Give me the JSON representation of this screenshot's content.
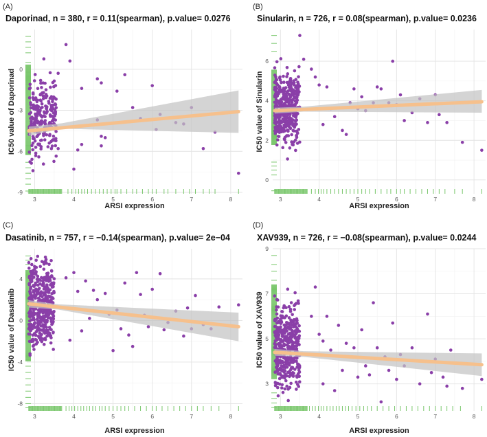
{
  "colors": {
    "point": "#8a3fa8",
    "fit_line": "#f6c08c",
    "ci_band": "#c4c4c4",
    "rug": "#78c66a"
  },
  "chart_data": [
    {
      "type": "scatter",
      "panel": "(A)",
      "title": "Daporinad, n = 380, r = 0.11(spearman), p.value= 0.0276",
      "xlabel": "ARSI expression",
      "ylabel": "IC50 value of Daporinad",
      "xlim": [
        2.8,
        8.3
      ],
      "ylim": [
        -9.1,
        2.9
      ],
      "xticks": [
        3,
        4,
        5,
        6,
        7,
        8
      ],
      "yticks": [
        -9,
        -6,
        -3,
        0
      ],
      "fit": {
        "x0": 2.85,
        "y0": -4.5,
        "x1": 8.2,
        "y1": -3.1
      },
      "ci": {
        "x0": 2.85,
        "lo0": -4.85,
        "hi0": -4.2,
        "xm": 3.7,
        "lom": -4.35,
        "him": -3.95,
        "x1": 8.2,
        "lo1": -4.65,
        "hi1": -1.55
      },
      "points": [
        [
          3.6,
          -0.3
        ],
        [
          3.8,
          1.8
        ],
        [
          3.9,
          0.6
        ],
        [
          4.2,
          -1.4
        ],
        [
          4.6,
          -0.7
        ],
        [
          4.7,
          -1.0
        ],
        [
          5.1,
          -1.6
        ],
        [
          5.3,
          -0.4
        ],
        [
          5.5,
          -2.8
        ],
        [
          5.7,
          -3.6
        ],
        [
          6.0,
          -1.2
        ],
        [
          6.1,
          -4.4
        ],
        [
          6.2,
          -3.3
        ],
        [
          6.6,
          -3.9
        ],
        [
          6.8,
          -4.0
        ],
        [
          7.0,
          -2.8
        ],
        [
          7.3,
          -5.8
        ],
        [
          7.6,
          -4.6
        ],
        [
          8.2,
          -7.6
        ],
        [
          4.6,
          -3.7
        ],
        [
          4.7,
          -4.9
        ],
        [
          4.8,
          -5.0
        ],
        [
          4.7,
          -5.6
        ],
        [
          4.2,
          -5.5
        ],
        [
          4.0,
          -7.3
        ],
        [
          4.1,
          -5.9
        ],
        [
          3.6,
          -5.8
        ]
      ],
      "dense": {
        "count": 250,
        "xmin": 2.85,
        "xmax": 3.55,
        "ymin": -8.4,
        "ymax": 2.0,
        "ycenter": -3.6,
        "seed": 11
      },
      "rug_x": [
        3.85,
        3.95,
        4.05,
        4.12,
        4.2,
        4.28,
        4.35,
        4.45,
        4.55,
        4.65,
        4.75,
        4.85,
        4.95,
        5.05,
        5.1,
        5.2,
        5.35,
        5.5,
        5.6,
        5.75,
        5.9,
        6.0,
        6.1,
        6.3,
        6.4,
        6.6,
        6.8,
        6.95,
        7.1,
        7.3,
        7.45,
        7.6,
        8.2
      ],
      "rug_y": [
        2.4,
        2.0,
        1.6,
        1.2,
        0.5,
        -0.2,
        -0.6,
        -1.1,
        -5.6,
        -6.2,
        -6.8,
        -7.2,
        -7.6,
        -8.0,
        -8.4,
        -8.9
      ]
    },
    {
      "type": "scatter",
      "panel": "(B)",
      "title": "Sinularin, n = 726, r = 0.08(spearman), p.value= 0.0236",
      "xlabel": "ARSI expression",
      "ylabel": "IC50 value of Sinularin",
      "xlim": [
        2.8,
        8.3
      ],
      "ylim": [
        -0.7,
        7.6
      ],
      "xticks": [
        3,
        4,
        5,
        6,
        7,
        8
      ],
      "yticks": [
        0,
        2,
        4,
        6
      ],
      "fit": {
        "x0": 2.85,
        "y0": 3.5,
        "x1": 8.2,
        "y1": 3.95
      },
      "ci": {
        "x0": 2.85,
        "lo0": 3.35,
        "hi0": 3.65,
        "xm": 3.6,
        "lom": 3.45,
        "him": 3.7,
        "x1": 8.2,
        "lo1": 3.4,
        "hi1": 4.55
      },
      "points": [
        [
          3.5,
          7.3
        ],
        [
          3.6,
          6.1
        ],
        [
          4.0,
          4.8
        ],
        [
          4.2,
          4.7
        ],
        [
          4.4,
          3.2
        ],
        [
          4.6,
          2.5
        ],
        [
          4.7,
          2.3
        ],
        [
          4.8,
          3.9
        ],
        [
          4.9,
          4.6
        ],
        [
          5.0,
          3.6
        ],
        [
          5.1,
          4.2
        ],
        [
          5.2,
          3.5
        ],
        [
          5.4,
          3.9
        ],
        [
          5.5,
          4.7
        ],
        [
          5.6,
          4.6
        ],
        [
          5.8,
          3.9
        ],
        [
          5.9,
          6.0
        ],
        [
          6.0,
          3.8
        ],
        [
          6.1,
          4.3
        ],
        [
          6.2,
          3.0
        ],
        [
          6.4,
          3.4
        ],
        [
          6.6,
          4.1
        ],
        [
          6.8,
          2.9
        ],
        [
          7.0,
          4.3
        ],
        [
          7.1,
          3.3
        ],
        [
          7.3,
          2.9
        ],
        [
          7.7,
          1.9
        ],
        [
          8.2,
          1.5
        ],
        [
          4.3,
          3.6
        ],
        [
          3.9,
          5.2
        ],
        [
          3.8,
          5.6
        ],
        [
          4.1,
          2.8
        ]
      ],
      "dense": {
        "count": 440,
        "xmin": 2.85,
        "xmax": 3.5,
        "ymin": 0.3,
        "ymax": 6.4,
        "ycenter": 3.6,
        "seed": 23
      },
      "rug_x": [
        3.8,
        3.9,
        3.98,
        4.05,
        4.12,
        4.2,
        4.3,
        4.4,
        4.5,
        4.6,
        4.7,
        4.8,
        4.9,
        5.0,
        5.1,
        5.2,
        5.3,
        5.45,
        5.6,
        5.75,
        5.85,
        6.0,
        6.1,
        6.2,
        6.35,
        6.5,
        6.65,
        6.8,
        6.95,
        7.1,
        7.25,
        7.5,
        7.7,
        8.2
      ],
      "rug_y": [
        7.3,
        6.9,
        6.5,
        0.9,
        0.7,
        0.5,
        0.25,
        -0.55
      ]
    },
    {
      "type": "scatter",
      "panel": "(C)",
      "title": "Dasatinib, n = 757, r = −0.14(spearman), p.value= 2e−04",
      "xlabel": "ARSI expression",
      "ylabel": "IC50 value of Dasatinib",
      "xlim": [
        2.8,
        8.3
      ],
      "ylim": [
        -8.7,
        6.9
      ],
      "xticks": [
        3,
        4,
        5,
        6,
        7,
        8
      ],
      "yticks": [
        -8,
        -4,
        0,
        4
      ],
      "fit": {
        "x0": 2.85,
        "y0": 1.6,
        "x1": 8.2,
        "y1": -0.6
      },
      "ci": {
        "x0": 2.85,
        "lo0": 1.25,
        "hi0": 1.95,
        "xm": 3.6,
        "lom": 1.05,
        "him": 1.55,
        "x1": 8.2,
        "lo1": -2.0,
        "hi1": 0.75
      },
      "points": [
        [
          3.8,
          4.1
        ],
        [
          4.0,
          4.6
        ],
        [
          4.1,
          2.8
        ],
        [
          4.3,
          3.8
        ],
        [
          4.5,
          2.9
        ],
        [
          4.6,
          2.0
        ],
        [
          4.8,
          2.6
        ],
        [
          4.9,
          0.6
        ],
        [
          5.0,
          -2.9
        ],
        [
          5.1,
          1.0
        ],
        [
          5.2,
          -0.8
        ],
        [
          5.3,
          3.6
        ],
        [
          5.4,
          -1.4
        ],
        [
          5.6,
          4.6
        ],
        [
          5.7,
          2.5
        ],
        [
          5.8,
          0.5
        ],
        [
          5.9,
          -0.6
        ],
        [
          6.0,
          3.0
        ],
        [
          6.2,
          4.5
        ],
        [
          6.3,
          -0.9
        ],
        [
          6.4,
          -0.2
        ],
        [
          6.6,
          0.9
        ],
        [
          6.8,
          -1.5
        ],
        [
          6.9,
          1.2
        ],
        [
          7.0,
          -0.8
        ],
        [
          7.1,
          2.4
        ],
        [
          7.3,
          -0.4
        ],
        [
          7.5,
          -0.8
        ],
        [
          7.7,
          1.3
        ],
        [
          8.2,
          1.5
        ],
        [
          4.2,
          -1.0
        ],
        [
          4.4,
          0.2
        ],
        [
          5.5,
          -2.5
        ],
        [
          3.9,
          -1.9
        ]
      ],
      "dense": {
        "count": 450,
        "xmin": 2.85,
        "xmax": 3.5,
        "ymin": -8.4,
        "ymax": 6.2,
        "ycenter": 1.6,
        "seed": 37
      },
      "rug_x": [
        3.8,
        3.88,
        3.95,
        4.02,
        4.1,
        4.18,
        4.25,
        4.33,
        4.4,
        4.48,
        4.56,
        4.65,
        4.72,
        4.8,
        4.9,
        5.0,
        5.1,
        5.2,
        5.3,
        5.4,
        5.55,
        5.7,
        5.85,
        6.0,
        6.1,
        6.25,
        6.4,
        6.55,
        6.7,
        6.85,
        7.0,
        7.15,
        7.3,
        7.5,
        7.7,
        8.2
      ],
      "rug_y": [
        6.2,
        5.8,
        5.4,
        -3.8,
        -4.4,
        -5.0,
        -5.6,
        -6.2,
        -6.8,
        -7.4,
        -8.0,
        -8.4
      ]
    },
    {
      "type": "scatter",
      "panel": "(D)",
      "title": "XAV939, n = 726, r = −0.08(spearman), p.value= 0.0244",
      "xlabel": "ARSI expression",
      "ylabel": "IC50 value of XAV939",
      "xlim": [
        2.8,
        8.3
      ],
      "ylim": [
        1.8,
        9.0
      ],
      "xticks": [
        3,
        4,
        5,
        6,
        7,
        8
      ],
      "yticks": [
        3,
        5,
        7,
        9
      ],
      "fit": {
        "x0": 2.85,
        "y0": 4.4,
        "x1": 8.2,
        "y1": 3.85
      },
      "ci": {
        "x0": 2.85,
        "lo0": 4.25,
        "hi0": 4.55,
        "xm": 3.6,
        "lom": 4.2,
        "him": 4.45,
        "x1": 8.2,
        "lo1": 3.35,
        "hi1": 4.35
      },
      "points": [
        [
          3.8,
          6.0
        ],
        [
          3.9,
          7.3
        ],
        [
          4.0,
          5.2
        ],
        [
          4.1,
          4.9
        ],
        [
          4.2,
          6.0
        ],
        [
          4.3,
          4.5
        ],
        [
          4.5,
          5.6
        ],
        [
          4.6,
          3.6
        ],
        [
          4.7,
          4.8
        ],
        [
          4.8,
          4.2
        ],
        [
          4.9,
          4.6
        ],
        [
          5.0,
          3.3
        ],
        [
          5.1,
          5.4
        ],
        [
          5.2,
          3.8
        ],
        [
          5.3,
          3.4
        ],
        [
          5.4,
          6.6
        ],
        [
          5.5,
          4.6
        ],
        [
          5.6,
          2.2
        ],
        [
          5.7,
          4.2
        ],
        [
          5.8,
          3.6
        ],
        [
          5.9,
          5.7
        ],
        [
          6.0,
          3.2
        ],
        [
          6.1,
          4.3
        ],
        [
          6.2,
          3.8
        ],
        [
          6.4,
          4.6
        ],
        [
          6.6,
          3.0
        ],
        [
          6.8,
          6.1
        ],
        [
          6.9,
          3.5
        ],
        [
          7.0,
          4.1
        ],
        [
          7.2,
          3.3
        ],
        [
          7.3,
          2.9
        ],
        [
          7.4,
          4.5
        ],
        [
          7.7,
          2.8
        ],
        [
          8.2,
          3.2
        ],
        [
          4.4,
          2.7
        ],
        [
          4.1,
          3.0
        ]
      ],
      "dense": {
        "count": 430,
        "xmin": 2.85,
        "xmax": 3.5,
        "ymin": 2.1,
        "ymax": 8.6,
        "ycenter": 4.6,
        "seed": 51
      },
      "rug_x": [
        3.75,
        3.82,
        3.9,
        3.98,
        4.05,
        4.12,
        4.2,
        4.28,
        4.36,
        4.44,
        4.52,
        4.6,
        4.68,
        4.76,
        4.85,
        4.95,
        5.05,
        5.15,
        5.25,
        5.35,
        5.5,
        5.65,
        5.8,
        5.95,
        6.1,
        6.25,
        6.4,
        6.55,
        6.7,
        6.85,
        7.0,
        7.15,
        7.3,
        7.45,
        7.65,
        8.2
      ],
      "rug_y": [
        8.7,
        8.3,
        8.0,
        7.6,
        2.6,
        2.35,
        2.15,
        1.95
      ]
    }
  ]
}
